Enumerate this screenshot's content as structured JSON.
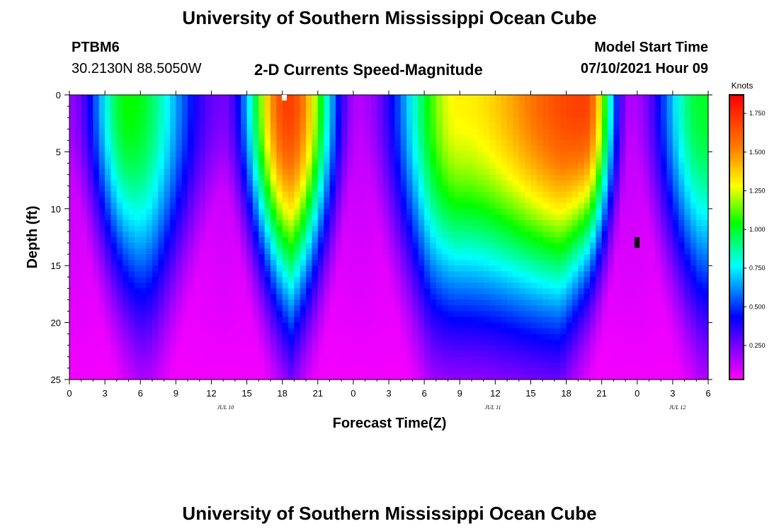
{
  "header": {
    "title": "University of Southern Mississippi Ocean Cube",
    "station_id": "PTBM6",
    "coords": "30.2130N  88.5050W",
    "product": "2-D Currents Speed-Magnitude",
    "model_start_label": "Model Start Time",
    "model_start_value": "07/10/2021 Hour 09"
  },
  "footer": {
    "title": "University of Southern Mississippi Ocean Cube"
  },
  "chart_data": {
    "type": "heatmap",
    "title": "2-D Currents Speed-Magnitude",
    "xlabel": "Forecast Time(Z)",
    "ylabel": "Depth (ft)",
    "x_tick_labels": [
      "0",
      "3",
      "6",
      "9",
      "12",
      "15",
      "18",
      "21",
      "0",
      "3",
      "6",
      "9",
      "12",
      "15",
      "18",
      "21",
      "0",
      "3",
      "6"
    ],
    "y_tick_labels": [
      "0",
      "5",
      "10",
      "15",
      "20",
      "25"
    ],
    "date_labels": [
      "JUL 10",
      "JUL 11",
      "JUL 12"
    ],
    "xlim_hours": [
      0,
      54
    ],
    "ylim_ft": [
      0,
      25
    ],
    "colorbar": {
      "unit": "Knots",
      "range": [
        0.03,
        1.87
      ],
      "tick_labels": [
        "1.750",
        "1.500",
        "1.250",
        "1.000",
        "0.750",
        "0.500",
        "0.250"
      ]
    },
    "surface_peaks": [
      {
        "hour": 5,
        "speed": 1.05
      },
      {
        "hour": 18.5,
        "speed": 1.7
      },
      {
        "hour": 33,
        "speed": 1.3
      },
      {
        "hour": 43.5,
        "speed": 1.7
      },
      {
        "hour": 53.5,
        "speed": 1.0
      }
    ],
    "surface_lows": [
      {
        "hour": 0,
        "speed": 0.2
      },
      {
        "hour": 13,
        "speed": 0.25
      },
      {
        "hour": 24.5,
        "speed": 0.15
      },
      {
        "hour": 47.5,
        "speed": 0.15
      }
    ]
  }
}
